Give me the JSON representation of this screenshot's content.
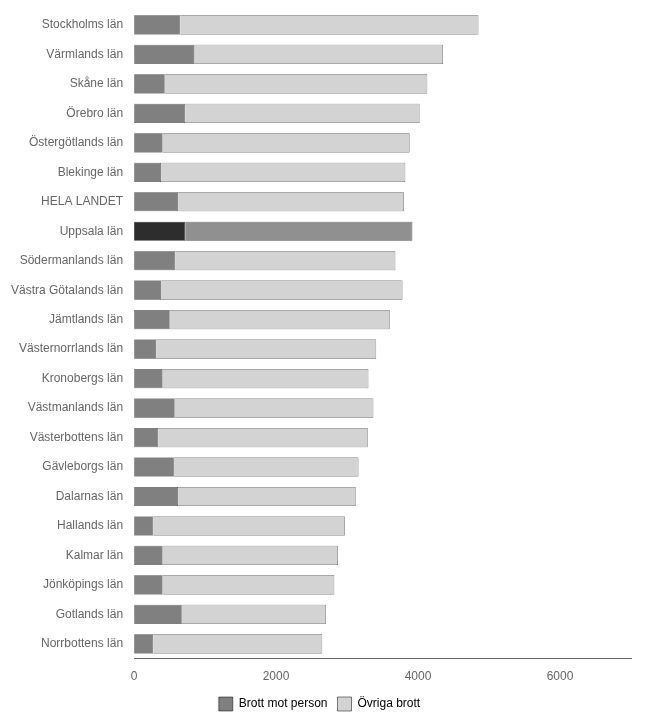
{
  "chart_data": {
    "type": "bar",
    "orientation": "horizontal",
    "stacked": true,
    "categories": [
      "Stockholms län",
      "Värmlands län",
      "Skåne län",
      "Örebro län",
      "Östergötlands län",
      "Blekinge län",
      "HELA LANDET",
      "Uppsala län",
      "Södermanlands län",
      "Västra Götalands län",
      "Jämtlands län",
      "Västernorrlands län",
      "Kronobergs län",
      "Västmanlands län",
      "Västerbottens län",
      "Gävleborgs län",
      "Dalarnas län",
      "Hallands län",
      "Kalmar län",
      "Jönköpings län",
      "Gotlands län",
      "Norrbottens län"
    ],
    "series": [
      {
        "name": "Brott mot person",
        "color": "#808080",
        "colors": [
          "#808080",
          "#808080",
          "#808080",
          "#808080",
          "#808080",
          "#808080",
          "#808080",
          "#2d2d2d",
          "#808080",
          "#808080",
          "#808080",
          "#808080",
          "#808080",
          "#808080",
          "#808080",
          "#808080",
          "#808080",
          "#808080",
          "#808080",
          "#808080",
          "#808080",
          "#808080"
        ],
        "values": [
          650,
          850,
          430,
          720,
          400,
          380,
          620,
          720,
          580,
          380,
          500,
          310,
          400,
          570,
          340,
          560,
          620,
          270,
          400,
          400,
          670,
          270
        ]
      },
      {
        "name": "Övriga brott",
        "color": "#d3d3d3",
        "colors": [
          "#d3d3d3",
          "#d3d3d3",
          "#d3d3d3",
          "#d3d3d3",
          "#d3d3d3",
          "#d3d3d3",
          "#d3d3d3",
          "#909090",
          "#d3d3d3",
          "#d3d3d3",
          "#d3d3d3",
          "#d3d3d3",
          "#d3d3d3",
          "#d3d3d3",
          "#d3d3d3",
          "#d3d3d3",
          "#d3d3d3",
          "#d3d3d3",
          "#d3d3d3",
          "#d3d3d3",
          "#d3d3d3",
          "#d3d3d3"
        ],
        "values": [
          4200,
          3500,
          3700,
          3300,
          3480,
          3440,
          3180,
          3200,
          3100,
          3400,
          3100,
          3100,
          2900,
          2800,
          2950,
          2600,
          2500,
          2700,
          2470,
          2420,
          2030,
          2380
        ]
      }
    ],
    "xlim": [
      0,
      7000
    ],
    "xticks": [
      0,
      2000,
      4000,
      6000
    ],
    "grid": false,
    "legend": "bottom"
  }
}
